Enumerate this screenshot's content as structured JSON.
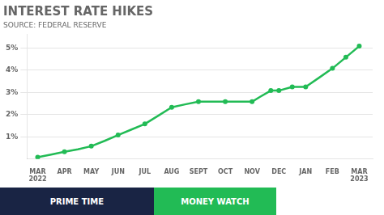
{
  "chart_data": {
    "type": "line",
    "title": "INTEREST RATE HIKES",
    "subtitle": "SOURCE: FEDERAL RESERVE",
    "series": [
      {
        "type": "line",
        "color": "#22bb55",
        "x": [
          0,
          0.5,
          1,
          1.5,
          2,
          2.5,
          3,
          3.5,
          4,
          4.5,
          5,
          5.5,
          6,
          6.5,
          7,
          7.5,
          8,
          8.3,
          8.7,
          9,
          9.5,
          10,
          10.5,
          11,
          11.5,
          12
        ],
        "values": [
          0.08,
          0.2,
          0.33,
          0.44,
          0.58,
          0.82,
          1.08,
          1.33,
          1.58,
          1.95,
          2.33,
          2.46,
          2.58,
          2.58,
          2.58,
          2.58,
          2.58,
          2.8,
          3.08,
          3.08,
          3.25,
          3.25,
          3.66,
          4.08,
          4.58,
          5.08
        ]
      },
      {
        "type": "scatter",
        "color": "#22bb55",
        "marker": "circle",
        "x": [
          0,
          1,
          2,
          3,
          4,
          5,
          6,
          7,
          8,
          8.7,
          9,
          9.5,
          10,
          11,
          11.5,
          12
        ],
        "values": [
          0.08,
          0.33,
          0.58,
          1.08,
          1.58,
          2.33,
          2.58,
          2.58,
          2.58,
          3.08,
          3.08,
          3.25,
          3.25,
          4.08,
          4.58,
          5.08
        ]
      }
    ],
    "xlim": [
      -0.4,
      12.5
    ],
    "xticks": [
      {
        "value": 0,
        "label": "MAR\n2022"
      },
      {
        "value": 1,
        "label": "APR"
      },
      {
        "value": 2,
        "label": "MAY"
      },
      {
        "value": 3,
        "label": "JUN"
      },
      {
        "value": 4,
        "label": "JUL"
      },
      {
        "value": 5,
        "label": "AUG"
      },
      {
        "value": 6,
        "label": "SEPT"
      },
      {
        "value": 7,
        "label": "OCT"
      },
      {
        "value": 8,
        "label": "NOV"
      },
      {
        "value": 9,
        "label": "DEC"
      },
      {
        "value": 10,
        "label": "JAN"
      },
      {
        "value": 11,
        "label": "FEB"
      },
      {
        "value": 12,
        "label": "MAR\n2023"
      }
    ],
    "ylim": [
      0,
      5.6
    ],
    "yticks": [
      {
        "value": 1,
        "label": "1%"
      },
      {
        "value": 2,
        "label": "2%"
      },
      {
        "value": 3,
        "label": "3%"
      },
      {
        "value": 4,
        "label": "4%"
      },
      {
        "value": 5,
        "label": "5%"
      }
    ],
    "grid": "y",
    "annotations": [
      {
        "text": "PRIME TIME",
        "color": "#192444"
      },
      {
        "text": "MONEY WATCH",
        "color": "#22bb55"
      }
    ]
  }
}
